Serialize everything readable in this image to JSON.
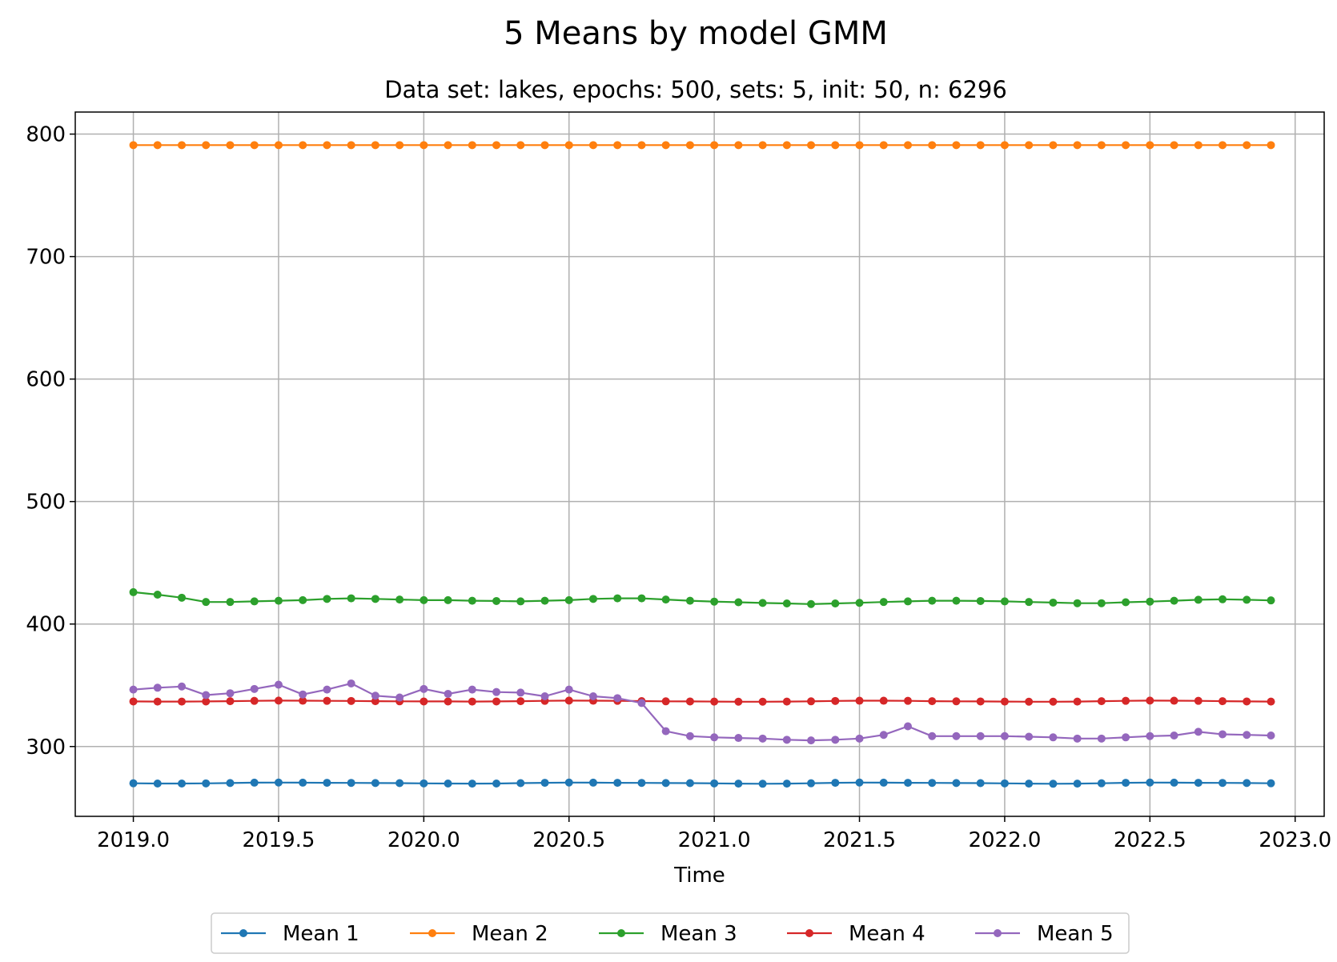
{
  "chart_data": {
    "type": "line",
    "title": "5 Means by model GMM",
    "subtitle": "Data set: lakes, epochs: 500, sets: 5, init: 50, n: 6296",
    "xlabel": "Time",
    "ylabel": "",
    "xlim": [
      2018.8,
      2023.1
    ],
    "ylim": [
      243,
      818
    ],
    "xticks": [
      "2019.0",
      "2019.5",
      "2020.0",
      "2020.5",
      "2021.0",
      "2021.5",
      "2022.0",
      "2022.5",
      "2023.0"
    ],
    "yticks": [
      "300",
      "400",
      "500",
      "600",
      "700",
      "800"
    ],
    "grid": true,
    "legend_position": "bottom-center",
    "x": [
      2019.0,
      2019.0833,
      2019.1667,
      2019.25,
      2019.3333,
      2019.4167,
      2019.5,
      2019.5833,
      2019.6667,
      2019.75,
      2019.8333,
      2019.9167,
      2020.0,
      2020.0833,
      2020.1667,
      2020.25,
      2020.3333,
      2020.4167,
      2020.5,
      2020.5833,
      2020.6667,
      2020.75,
      2020.8333,
      2020.9167,
      2021.0,
      2021.0833,
      2021.1667,
      2021.25,
      2021.3333,
      2021.4167,
      2021.5,
      2021.5833,
      2021.6667,
      2021.75,
      2021.8333,
      2021.9167,
      2022.0,
      2022.0833,
      2022.1667,
      2022.25,
      2022.3333,
      2022.4167,
      2022.5,
      2022.5833,
      2022.6667,
      2022.75,
      2022.8333,
      2022.9167
    ],
    "series": [
      {
        "name": "Mean 1",
        "color": "#1f77b4",
        "values": [
          270.0,
          269.8,
          269.8,
          269.9,
          270.2,
          270.5,
          270.6,
          270.5,
          270.4,
          270.3,
          270.2,
          270.1,
          269.9,
          269.8,
          269.7,
          269.8,
          270.1,
          270.4,
          270.6,
          270.5,
          270.4,
          270.3,
          270.2,
          270.1,
          269.9,
          269.7,
          269.6,
          269.7,
          270.0,
          270.4,
          270.6,
          270.5,
          270.4,
          270.3,
          270.2,
          270.1,
          269.9,
          269.7,
          269.6,
          269.7,
          270.0,
          270.4,
          270.6,
          270.5,
          270.4,
          270.3,
          270.2,
          270.0
        ]
      },
      {
        "name": "Mean 2",
        "color": "#ff7f0e",
        "values": [
          791.0,
          791.0,
          791.0,
          791.0,
          791.0,
          791.0,
          791.0,
          791.0,
          791.0,
          791.0,
          791.0,
          791.0,
          791.0,
          791.0,
          791.0,
          791.0,
          791.0,
          791.0,
          791.0,
          791.0,
          791.0,
          791.0,
          791.0,
          791.0,
          791.0,
          791.0,
          791.0,
          791.0,
          791.0,
          791.0,
          791.0,
          791.0,
          791.0,
          791.0,
          791.0,
          791.0,
          791.0,
          791.0,
          791.0,
          791.0,
          791.0,
          791.0,
          791.0,
          791.0,
          791.0,
          791.0,
          791.0,
          791.0
        ]
      },
      {
        "name": "Mean 3",
        "color": "#2ca02c",
        "values": [
          426.0,
          424.0,
          421.5,
          418.0,
          418.0,
          418.5,
          419.0,
          419.5,
          420.5,
          421.0,
          420.5,
          420.0,
          419.5,
          419.5,
          419.0,
          418.8,
          418.5,
          419.0,
          419.5,
          420.5,
          421.0,
          421.0,
          420.0,
          419.0,
          418.3,
          417.8,
          417.2,
          416.8,
          416.3,
          416.8,
          417.3,
          418.0,
          418.5,
          419.0,
          419.0,
          418.8,
          418.5,
          418.0,
          417.5,
          417.0,
          417.0,
          417.8,
          418.3,
          419.0,
          419.8,
          420.2,
          419.8,
          419.3
        ]
      },
      {
        "name": "Mean 4",
        "color": "#d62728",
        "values": [
          336.8,
          336.7,
          336.7,
          336.8,
          337.0,
          337.3,
          337.5,
          337.4,
          337.3,
          337.2,
          337.0,
          336.9,
          336.8,
          336.8,
          336.7,
          336.8,
          337.0,
          337.3,
          337.5,
          337.4,
          337.3,
          337.1,
          336.9,
          336.8,
          336.7,
          336.6,
          336.6,
          336.7,
          336.9,
          337.2,
          337.4,
          337.4,
          337.3,
          337.0,
          336.9,
          336.8,
          336.7,
          336.6,
          336.6,
          336.7,
          337.0,
          337.3,
          337.5,
          337.4,
          337.3,
          337.0,
          336.8,
          336.7
        ]
      },
      {
        "name": "Mean 5",
        "color": "#9467bd",
        "values": [
          346.5,
          348.0,
          349.0,
          342.0,
          343.5,
          347.0,
          350.5,
          342.5,
          346.5,
          351.5,
          341.5,
          340.0,
          347.0,
          343.0,
          346.5,
          344.5,
          344.0,
          341.0,
          346.5,
          341.0,
          339.5,
          335.5,
          312.5,
          308.5,
          307.5,
          307.0,
          306.5,
          305.5,
          305.0,
          305.5,
          306.5,
          309.5,
          316.5,
          308.5,
          308.5,
          308.5,
          308.5,
          308.0,
          307.5,
          306.5,
          306.5,
          307.5,
          308.5,
          309.0,
          312.0,
          310.0,
          309.5,
          309.0
        ]
      }
    ]
  }
}
